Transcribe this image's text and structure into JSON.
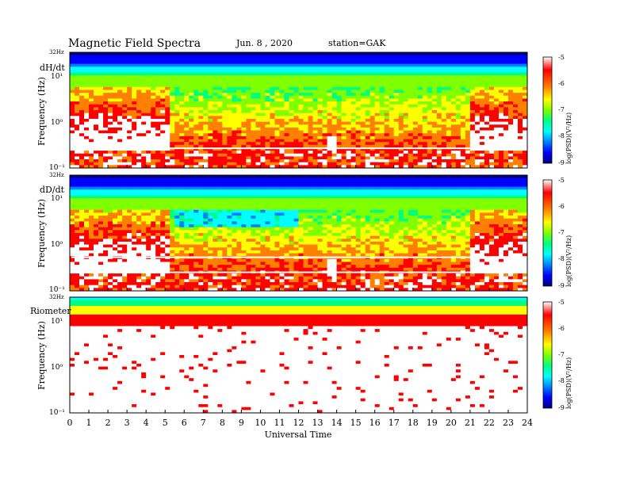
{
  "chart_data": {
    "type": "heatmap",
    "title": "Magnetic  Field  Spectra",
    "date": "Jun.  8  , 2020",
    "station": "station=GAK",
    "xlabel": "Universal  Time",
    "x_ticks": [
      "0",
      "1",
      "2",
      "3",
      "4",
      "5",
      "6",
      "7",
      "8",
      "9",
      "10",
      "11",
      "12",
      "13",
      "14",
      "15",
      "16",
      "17",
      "18",
      "19",
      "20",
      "21",
      "22",
      "23",
      "24"
    ],
    "xlim": [
      0,
      24
    ],
    "colorscale": [
      "#000080",
      "#0000ff",
      "#0080ff",
      "#00ffff",
      "#00ff80",
      "#80ff00",
      "#ffff00",
      "#ff8000",
      "#ff0000",
      "#ffffff"
    ],
    "colorbar": {
      "label": "log(PSD)(V²/Hz)",
      "ticks": [
        "-5",
        "-6",
        "-7",
        "-8",
        "-9"
      ],
      "range": [
        -9,
        -5
      ]
    },
    "panels": [
      {
        "label": "dH/dt",
        "ylabel": "Frequency  (Hz)",
        "top_label": "32Hz",
        "yticks": [
          "10¹",
          "10⁰",
          "10⁻¹"
        ],
        "ylim_log10": [
          -1,
          1.505
        ],
        "colorbar_label": "log(PSD)(V²/Hz)",
        "colorbar_ticks": [
          "-5",
          "-6",
          "-7",
          "-8",
          "-9"
        ]
      },
      {
        "label": "dD/dt",
        "ylabel": "Frequency  (Hz)",
        "top_label": "32Hz",
        "yticks": [
          "10¹",
          "10⁰",
          "10⁻¹"
        ],
        "ylim_log10": [
          -1,
          1.505
        ],
        "colorbar_label": "log(PSD)(V²/Hz)",
        "colorbar_ticks": [
          "-5",
          "-6",
          "-7",
          "-8",
          "-9"
        ]
      },
      {
        "label": "Riometer",
        "ylabel": "Frequency  (Hz)",
        "top_label": "32Hz",
        "yticks": [
          "10¹",
          "10⁰",
          "10⁻¹"
        ],
        "ylim_log10": [
          -1,
          1.505
        ],
        "colorbar_label": "log(PSD)(V²/Hz)",
        "colorbar_ticks": [
          "-5",
          "-6",
          "-7",
          "-8",
          "-9"
        ]
      }
    ]
  }
}
